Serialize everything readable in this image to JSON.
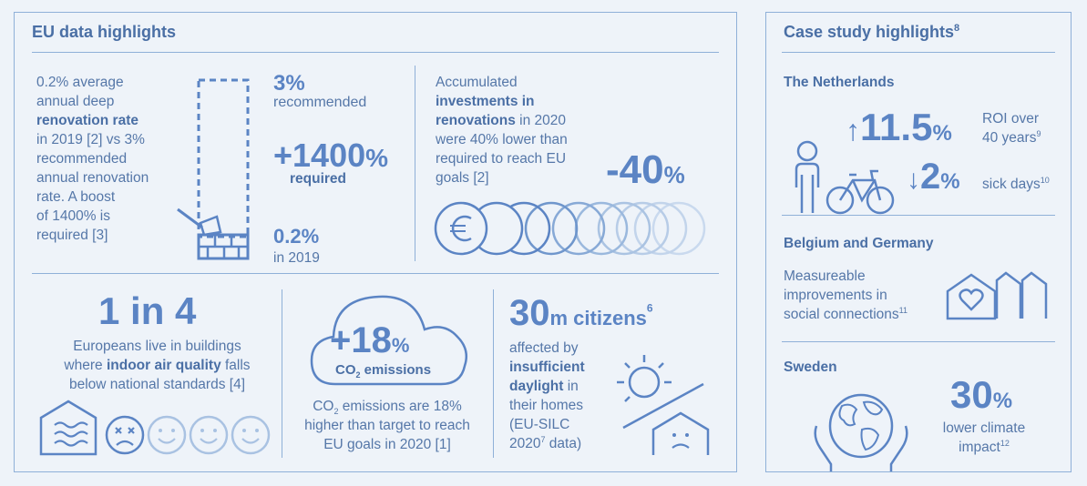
{
  "eu": {
    "title": "EU data highlights",
    "renovation": {
      "text_1": "0.2% average",
      "text_2": "annual deep",
      "text_bold": "renovation rate",
      "text_3": "in 2019 [2] vs 3%",
      "text_4": "recommended",
      "text_5": "annual renovation",
      "text_6": "rate. A boost",
      "text_7": "of 1400% is",
      "text_8": "required [3]",
      "rec_value": "3%",
      "rec_label": "recommended",
      "boost_value": "+1400",
      "boost_unit": "%",
      "boost_label": "required",
      "cur_value": "0.2%",
      "cur_label": "in 2019"
    },
    "investment": {
      "line_1": "Accumulated",
      "bold_1": "investments in",
      "bold_2": "renovations",
      "line_2": " in 2020",
      "line_3": "were 40% lower than",
      "line_4": "required to reach EU",
      "line_5": "goals [2]",
      "value": "-40",
      "unit": "%"
    },
    "air": {
      "headline": "1 in 4",
      "line_1": "Europeans live in buildings",
      "line_2a": "where ",
      "line_2b": "indoor air quality",
      "line_2c": " falls",
      "line_3": "below national standards [4]"
    },
    "co2": {
      "value": "+18",
      "unit": "%",
      "label_a": "CO",
      "label_sub": "2",
      "label_b": " emissions",
      "desc_1a": "CO",
      "desc_1sub": "2",
      "desc_1b": " emissions are 18%",
      "desc_2": "higher than target to reach",
      "desc_3": "EU goals in 2020 [1]"
    },
    "daylight": {
      "value": "30",
      "unit": "m citizens",
      "sup": "6",
      "line_1": "affected by",
      "bold_1": "insufficient",
      "bold_2": "daylight",
      "line_2": " in",
      "line_3": "their homes",
      "line_4": "(EU-SILC",
      "line_5a": "2020",
      "line_5sup": "7",
      "line_5b": " data)"
    }
  },
  "cases": {
    "title": "Case study highlights",
    "title_sup": "8",
    "netherlands": {
      "heading": "The Netherlands",
      "roi_value": "11.5",
      "roi_unit": "%",
      "roi_label_1": "ROI over",
      "roi_label_2": "40 years",
      "roi_sup": "9",
      "sick_value": "2",
      "sick_unit": "%",
      "sick_label": "sick days",
      "sick_sup": "10"
    },
    "belgium": {
      "heading": "Belgium and Germany",
      "line_1": "Measureable",
      "line_2": "improvements in",
      "line_3": "social connections",
      "sup": "11"
    },
    "sweden": {
      "heading": "Sweden",
      "value": "30",
      "unit": "%",
      "line_1": "lower climate",
      "line_2": "impact",
      "sup": "12"
    }
  },
  "colors": {
    "accent": "#5b84c4",
    "text": "#5577a8",
    "border": "#8fb0d8",
    "background": "#eef3f9"
  }
}
